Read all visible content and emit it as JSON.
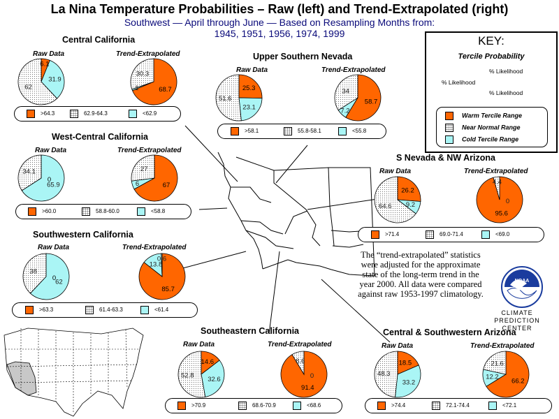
{
  "title": "La Nina Temperature Probabilities – Raw (left) and Trend-Extrapolated (right)",
  "subtitle_line1": "Southwest — April through June —  Based on Resampling Months from:",
  "subtitle_line2": "1945, 1951, 1956, 1974, 1999",
  "colors": {
    "warm": "#ff6600",
    "near": "#ffffff",
    "cold": "#aaf5f5"
  },
  "labels": {
    "raw": "Raw Data",
    "trend": "Trend-Extrapolated"
  },
  "key": {
    "title": "KEY:",
    "subtitle": "Tercile Probability",
    "pie_label": "% Likelihood",
    "warm": "Warm Tercile Range",
    "near": "Near Normal Range",
    "cold": "Cold Tercile Range"
  },
  "note": "The “trend-extrapolated” statistics were adjusted for the approximate state of the long-term trend in the year 2000. All data were compared against raw 1953-1997 climatology.",
  "logo": {
    "text": "NOAA",
    "caption_line1": "CLIMATE PREDICTION",
    "caption_line2": "CENTER"
  },
  "regions": [
    {
      "name": "Central California",
      "raw": {
        "warm": "6.1",
        "near": "62",
        "cold": "31.9"
      },
      "trend": {
        "warm": "68.7",
        "near": "30.3",
        "cold": "1"
      },
      "legend": {
        "warm": ">64.3",
        "near": "62.9-64.3",
        "cold": "<62.9"
      }
    },
    {
      "name": "Upper Southern Nevada",
      "raw": {
        "warm": "25.3",
        "near": "51.6",
        "cold": "23.1"
      },
      "trend": {
        "warm": "58.7",
        "near": "34",
        "cold": "7.2"
      },
      "legend": {
        "warm": ">58.1",
        "near": "55.8-58.1",
        "cold": "<55.8"
      }
    },
    {
      "name": "West-Central California",
      "raw": {
        "warm": "0",
        "near": "34.1",
        "cold": "65.9"
      },
      "trend": {
        "warm": "67",
        "near": "27",
        "cold": "6"
      },
      "legend": {
        "warm": ">60.0",
        "near": "58.8-60.0",
        "cold": "<58.8"
      }
    },
    {
      "name": "S Nevada & NW Arizona",
      "raw": {
        "warm": "26.2",
        "near": "64.6",
        "cold": "9.2"
      },
      "trend": {
        "warm": "95.6",
        "near": "4.4",
        "cold": "0"
      },
      "legend": {
        "warm": ">71.4",
        "near": "69.0-71.4",
        "cold": "<69.0"
      }
    },
    {
      "name": "Southwestern California",
      "raw": {
        "warm": "0",
        "near": "38",
        "cold": "62"
      },
      "trend": {
        "warm": "85.7",
        "near": "0.6",
        "cold": "13.8"
      },
      "legend": {
        "warm": ">63.3",
        "near": "61.4-63.3",
        "cold": "<61.4"
      }
    },
    {
      "name": "Southeastern California",
      "raw": {
        "warm": "14.6",
        "near": "52.8",
        "cold": "32.6"
      },
      "trend": {
        "warm": "91.4",
        "near": "8.6",
        "cold": "0"
      },
      "legend": {
        "warm": ">70.9",
        "near": "68.6-70.9",
        "cold": "<68.6"
      }
    },
    {
      "name": "Central & Southwestern Arizona",
      "raw": {
        "warm": "18.5",
        "near": "48.3",
        "cold": "33.2"
      },
      "trend": {
        "warm": "66.2",
        "near": "21.6",
        "cold": "12.2"
      },
      "legend": {
        "warm": ">74.4",
        "near": "72.1-74.4",
        "cold": "<72.1"
      }
    }
  ]
}
